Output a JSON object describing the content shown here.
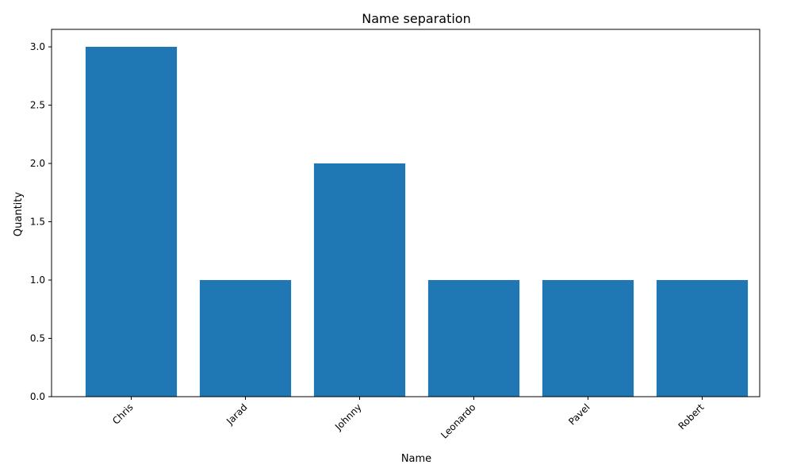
{
  "chart_data": {
    "type": "bar",
    "title": "Name separation",
    "xlabel": "Name",
    "ylabel": "Quantity",
    "categories": [
      "Chris",
      "Jarad",
      "Johnny",
      "Leonardo",
      "Pavel",
      "Robert"
    ],
    "values": [
      3,
      1,
      2,
      1,
      1,
      1
    ],
    "ylim": [
      0,
      3.15
    ],
    "yticks": [
      0.0,
      0.5,
      1.0,
      1.5,
      2.0,
      2.5,
      3.0
    ],
    "ytick_labels": [
      "0.0",
      "0.5",
      "1.0",
      "1.5",
      "2.0",
      "2.5",
      "3.0"
    ],
    "grid": false,
    "colors": {
      "bar": "#1f77b4",
      "axis": "#000000",
      "background": "#ffffff"
    }
  }
}
